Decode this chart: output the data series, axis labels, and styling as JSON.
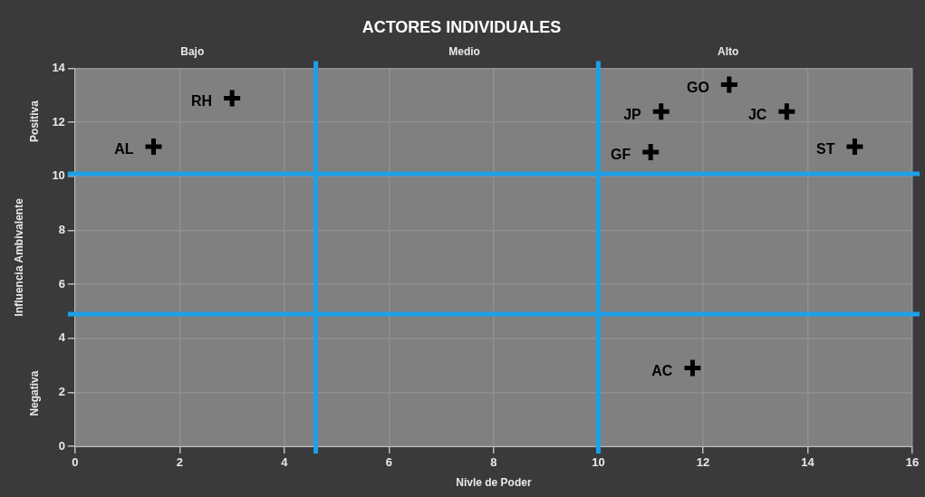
{
  "chart_data": {
    "type": "scatter",
    "title": "ACTORES INDIVIDUALES",
    "xlabel": "Nivle de Poder",
    "ylabel": "Influencia Ambivalente",
    "x": [
      1.5,
      3.0,
      11.2,
      12.5,
      13.6,
      11.0,
      14.9,
      11.8
    ],
    "series": [
      {
        "color": "#000000",
        "values": [
          11.1,
          12.9,
          12.4,
          13.4,
          12.4,
          10.9,
          11.1,
          2.9
        ],
        "value_labels": [
          "AL",
          "RH",
          "JP",
          "GO",
          "JC",
          "GF",
          "ST",
          "AC"
        ]
      }
    ],
    "marker": "cross",
    "grid": true,
    "legend": false,
    "xlim": [
      0,
      16
    ],
    "xticks": [
      0,
      2,
      4,
      6,
      8,
      10,
      12,
      14,
      16
    ],
    "ylim": [
      0,
      14
    ],
    "yticks": [
      0,
      2,
      4,
      6,
      8,
      10,
      12,
      14
    ],
    "ref_lines": [
      {
        "axis": "x",
        "value": 4.6,
        "color": "#1ea0e6"
      },
      {
        "axis": "x",
        "value": 10,
        "color": "#1ea0e6"
      },
      {
        "axis": "y",
        "value": 10.1,
        "color": "#1ea0e6"
      },
      {
        "axis": "y",
        "value": 4.9,
        "color": "#1ea0e6"
      }
    ],
    "annotations": [
      "Bajo",
      "Medio",
      "Alto",
      "Positiva",
      "Negativa"
    ]
  }
}
